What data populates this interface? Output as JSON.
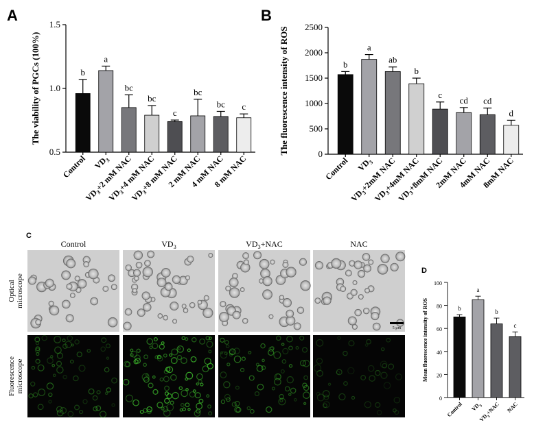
{
  "chart_data": [
    {
      "panel": "A",
      "type": "bar",
      "ylabel": "The viability of PGCs (100%)",
      "ylim": [
        0.5,
        1.5
      ],
      "yticks": [
        "0.5",
        "1.0",
        "1.5"
      ],
      "categories": [
        "Control",
        "VD3",
        "VD3+2 mM NAC",
        "VD3+4 mM NAC",
        "VD3+8 mM NAC",
        "2 mM NAC",
        "4 mM NAC",
        "8 mM NAC"
      ],
      "values": [
        0.96,
        1.14,
        0.85,
        0.79,
        0.74,
        0.785,
        0.78,
        0.77
      ],
      "errors": [
        0.11,
        0.035,
        0.1,
        0.075,
        0.012,
        0.13,
        0.04,
        0.03
      ],
      "letters": [
        "b",
        "a",
        "bc",
        "bc",
        "c",
        "bc",
        "bc",
        "c"
      ],
      "colors": [
        "#0a0a0a",
        "#a3a3a8",
        "#77777b",
        "#d0d0d0",
        "#4e4e52",
        "#a3a3a8",
        "#5d5d61",
        "#ededed"
      ]
    },
    {
      "panel": "B",
      "type": "bar",
      "ylabel": "The fluorescence intensity of ROS",
      "ylim": [
        0,
        2500
      ],
      "yticks": [
        "0",
        "500",
        "1000",
        "1500",
        "2000",
        "2500"
      ],
      "categories": [
        "Control",
        "VD3",
        "VD3+2mM NAC",
        "VD3+4mM NAC",
        "VD3+8mM NAC",
        "2mM NAC",
        "4mM NAC",
        "8mM NAC"
      ],
      "values": [
        1570,
        1870,
        1630,
        1390,
        890,
        820,
        780,
        570
      ],
      "errors": [
        60,
        95,
        90,
        110,
        140,
        100,
        130,
        100
      ],
      "letters": [
        "b",
        "a",
        "ab",
        "b",
        "c",
        "cd",
        "cd",
        "d"
      ],
      "colors": [
        "#0a0a0a",
        "#a3a3a8",
        "#77777b",
        "#d0d0d0",
        "#4e4e52",
        "#a3a3a8",
        "#5d5d61",
        "#ededed"
      ]
    },
    {
      "panel": "D",
      "type": "bar",
      "ylabel": "Mean fluorescence intensity of ROS",
      "ylim": [
        0,
        100
      ],
      "yticks": [
        "0",
        "20",
        "40",
        "60",
        "80",
        "100"
      ],
      "categories": [
        "Control",
        "VD3",
        "VD3+NAC",
        "NAC"
      ],
      "values": [
        70,
        85,
        64,
        53
      ],
      "errors": [
        2,
        3,
        5,
        4
      ],
      "letters": [
        "b",
        "a",
        "b",
        "c"
      ],
      "colors": [
        "#0a0a0a",
        "#a3a3a8",
        "#5d5d61",
        "#5d5d61"
      ]
    }
  ],
  "panel_c": {
    "label": "C",
    "columns": [
      "Control",
      "VD3",
      "VD3+NAC",
      "NAC"
    ],
    "rows": [
      "Optical microscope",
      "Fluorescence microscope"
    ],
    "scale_bar": "5 μm"
  }
}
